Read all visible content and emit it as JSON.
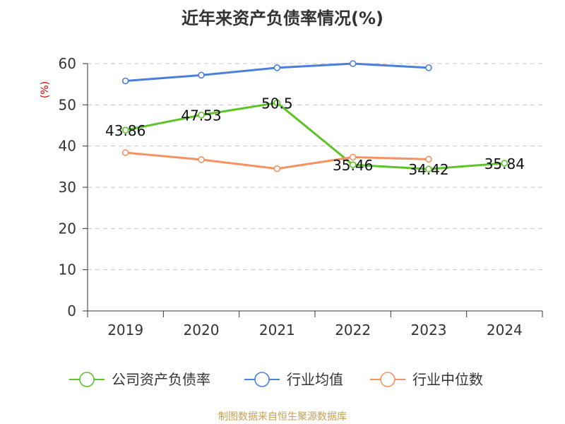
{
  "chart_data": {
    "type": "line",
    "title": "近年来资产负债率情况(%)",
    "ylabel": "(%)",
    "xlabel": "",
    "categories": [
      "2019",
      "2020",
      "2021",
      "2022",
      "2023",
      "2024"
    ],
    "ylim": [
      0,
      60
    ],
    "yticks": [
      0,
      10,
      20,
      30,
      40,
      50,
      60
    ],
    "grid": true,
    "legend_position": "bottom",
    "series": [
      {
        "name": "公司资产负债率",
        "color": "#5cc424",
        "values": [
          43.86,
          47.53,
          50.5,
          35.46,
          34.42,
          35.84
        ],
        "show_labels": true
      },
      {
        "name": "行业均值",
        "color": "#4a7fdc",
        "values": [
          55.8,
          57.2,
          59.0,
          60.0,
          59.0,
          null
        ],
        "show_labels": false
      },
      {
        "name": "行业中位数",
        "color": "#f5925f",
        "values": [
          38.4,
          36.7,
          34.5,
          37.3,
          36.8,
          null
        ],
        "show_labels": false
      }
    ]
  },
  "source": "制图数据来自恒生聚源数据库",
  "colors": {
    "axis": "#333333",
    "grid": "#c8c8c8",
    "ylabel": "#cc0000",
    "source": "#c8a050"
  }
}
